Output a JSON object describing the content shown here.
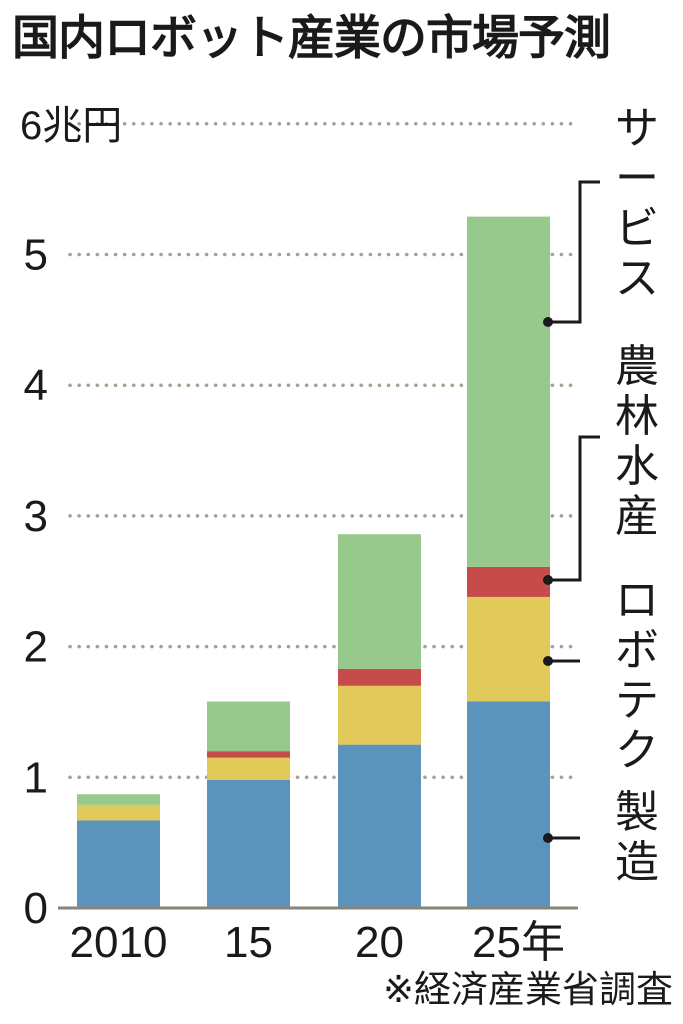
{
  "chart_data": {
    "type": "bar",
    "stacked": true,
    "title": "国内ロボット産業の市場予測",
    "categories": [
      "2010",
      "15",
      "20",
      "25年"
    ],
    "unit_label": "6兆円",
    "yticks": [
      "0",
      "1",
      "2",
      "3",
      "4",
      "5",
      "6兆円"
    ],
    "ylim": [
      0,
      6
    ],
    "grid": true,
    "series": [
      {
        "name": "製造",
        "color": "#5b93bd",
        "values": [
          0.67,
          0.98,
          1.25,
          1.58
        ]
      },
      {
        "name": "ロボテク",
        "color": "#e1c95a",
        "values": [
          0.12,
          0.17,
          0.45,
          0.8
        ]
      },
      {
        "name": "農林水産",
        "color": "#c54c4a",
        "values": [
          0.0,
          0.05,
          0.13,
          0.23
        ]
      },
      {
        "name": "サービス",
        "color": "#96c98b",
        "values": [
          0.08,
          0.38,
          1.03,
          2.68
        ]
      }
    ],
    "legend_placement": "right",
    "source": "※経済産業省調査"
  }
}
